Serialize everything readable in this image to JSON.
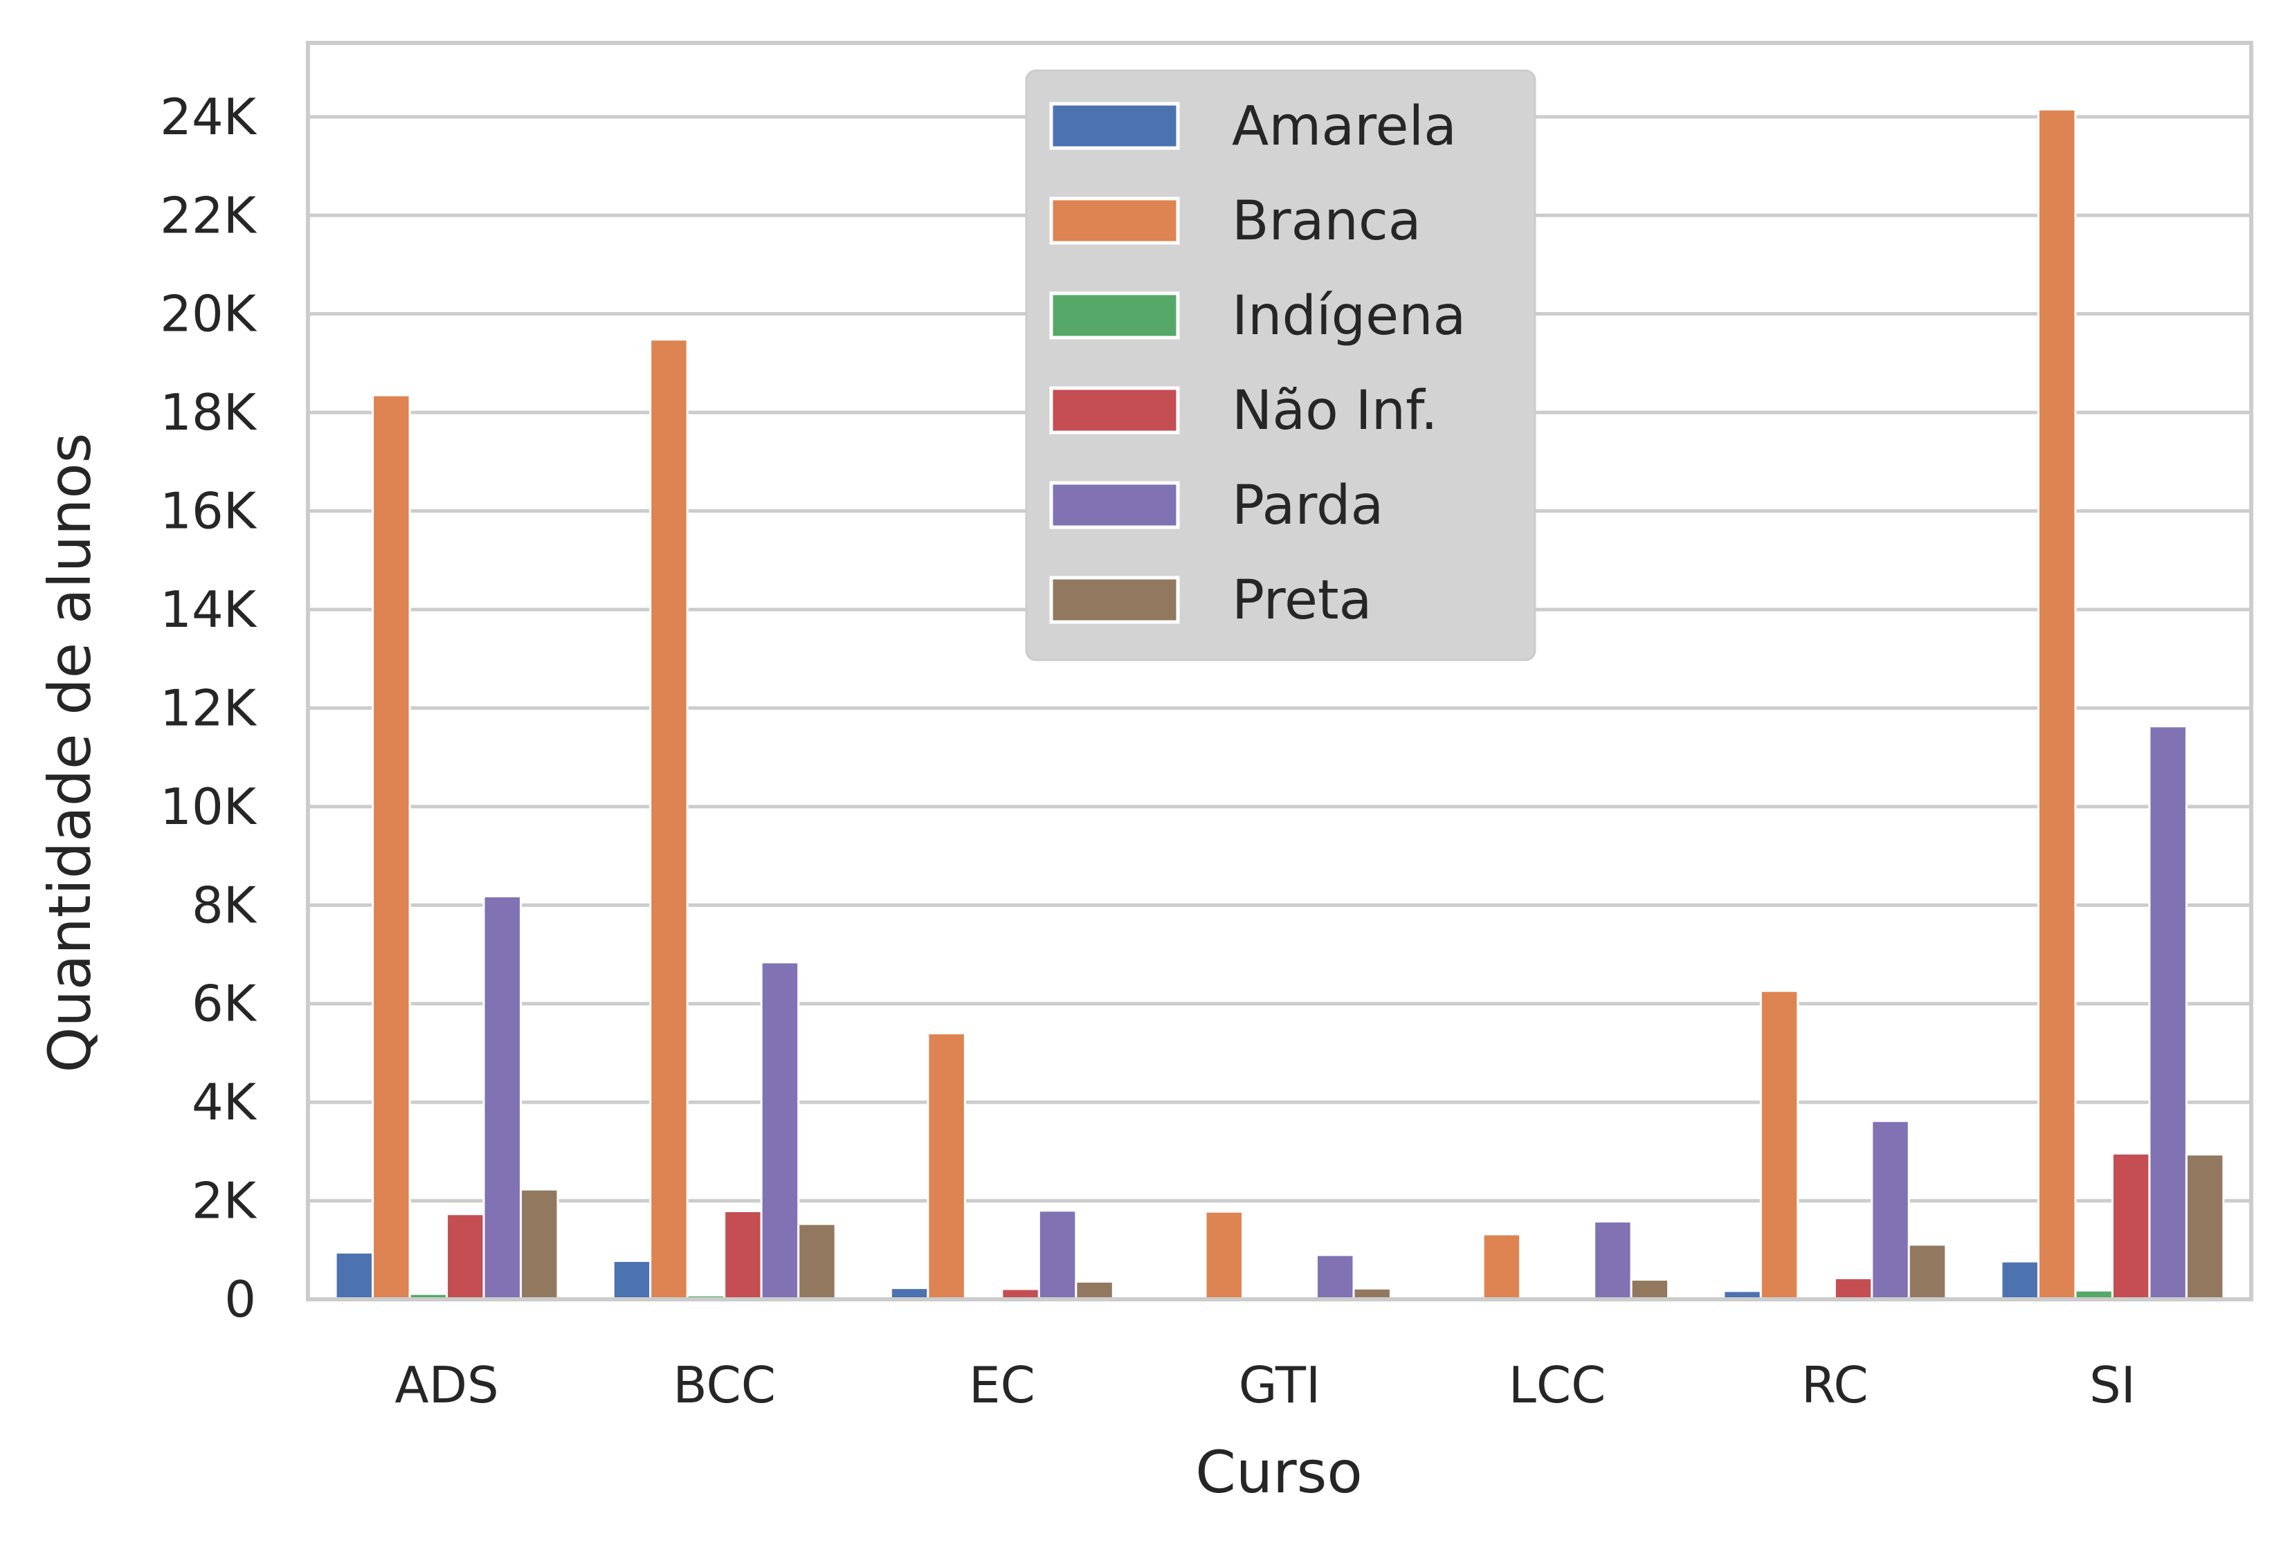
{
  "chart_data": {
    "type": "bar",
    "xlabel": "Curso",
    "ylabel": "Quantidade de alunos",
    "ylim": [
      0,
      25500
    ],
    "grid": "horizontal",
    "legend_position": "upper-center",
    "categories": [
      "ADS",
      "BCC",
      "EC",
      "GTI",
      "LCC",
      "RC",
      "SI"
    ],
    "y_ticks": [
      {
        "value": 0,
        "label": "0"
      },
      {
        "value": 2000,
        "label": "2K"
      },
      {
        "value": 4000,
        "label": "4K"
      },
      {
        "value": 6000,
        "label": "6K"
      },
      {
        "value": 8000,
        "label": "8K"
      },
      {
        "value": 10000,
        "label": "10K"
      },
      {
        "value": 12000,
        "label": "12K"
      },
      {
        "value": 14000,
        "label": "14K"
      },
      {
        "value": 16000,
        "label": "16K"
      },
      {
        "value": 18000,
        "label": "18K"
      },
      {
        "value": 20000,
        "label": "20K"
      },
      {
        "value": 22000,
        "label": "22K"
      },
      {
        "value": 24000,
        "label": "24K"
      }
    ],
    "series": [
      {
        "name": "Amarela",
        "color": "#4c72b0",
        "values": [
          950,
          780,
          230,
          20,
          20,
          170,
          770
        ]
      },
      {
        "name": "Branca",
        "color": "#dd8452",
        "values": [
          18350,
          19480,
          5400,
          1780,
          1320,
          6260,
          24150
        ]
      },
      {
        "name": "Indígena",
        "color": "#55a868",
        "values": [
          110,
          80,
          25,
          5,
          5,
          30,
          180
        ]
      },
      {
        "name": "Não Inf.",
        "color": "#c44e52",
        "values": [
          1730,
          1790,
          210,
          20,
          15,
          430,
          2960
        ]
      },
      {
        "name": "Parda",
        "color": "#8172b3",
        "values": [
          8180,
          6840,
          1800,
          900,
          1580,
          3620,
          11630
        ]
      },
      {
        "name": "Preta",
        "color": "#937860",
        "values": [
          2230,
          1530,
          360,
          220,
          400,
          1110,
          2940
        ]
      }
    ]
  }
}
